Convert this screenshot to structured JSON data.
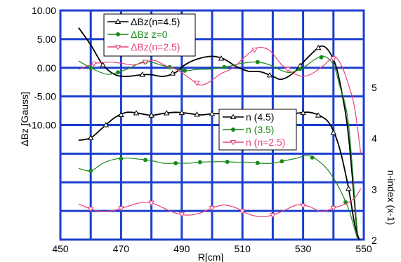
{
  "chart_data": {
    "type": "line",
    "xlabel": "R[cm]",
    "ylabel_left": "ΔBz [Gauss]",
    "ylabel_right": "n-index (x-1)",
    "xlim": [
      450,
      550
    ],
    "x_ticks": [
      "450",
      "470",
      "490",
      "510",
      "530",
      "550"
    ],
    "ylim_left": [
      -30,
      10
    ],
    "y_ticks_left": [
      {
        "value": 10,
        "label": "10.00"
      },
      {
        "value": 5,
        "label": "5.00"
      },
      {
        "value": 0,
        "label": "0.00"
      },
      {
        "value": -5,
        "label": "-5.00"
      },
      {
        "value": -10,
        "label": "-10.00"
      }
    ],
    "ylim_right": [
      2,
      6.5
    ],
    "y_ticks_right": [
      {
        "value": 2,
        "label": "2"
      },
      {
        "value": 3,
        "label": "3"
      },
      {
        "value": 4,
        "label": "4"
      },
      {
        "value": 5,
        "label": "5"
      }
    ],
    "grid": true,
    "colors": {
      "black": "#000000",
      "green": "#1a8a1a",
      "pink": "#e8407a",
      "grid": "#1c3fcf"
    },
    "legend_top": [
      {
        "label": "ΔBz(n=4.5)",
        "color": "#000000",
        "marker": "triangle-up"
      },
      {
        "label": "ΔBz z=0",
        "color": "#1a8a1a",
        "marker": "circle"
      },
      {
        "label": "ΔBz(n=2.5)",
        "color": "#e8407a",
        "marker": "triangle-down"
      }
    ],
    "legend_bottom": [
      {
        "label": "n (4.5)",
        "color": "#000000",
        "marker": "triangle-up"
      },
      {
        "label": "n (3.5)",
        "color": "#1a8a1a",
        "marker": "circle"
      },
      {
        "label": "n (n=2.5)",
        "color": "#e8407a",
        "marker": "triangle-down"
      }
    ],
    "series": [
      {
        "axis": "left",
        "color": "#000000",
        "marker": "triangle-up",
        "points": [
          [
            456,
            7
          ],
          [
            460,
            4
          ],
          [
            464,
            0.5
          ],
          [
            468,
            -1.2
          ],
          [
            472,
            -1.5
          ],
          [
            477,
            -1.2
          ],
          [
            480,
            -1.2
          ],
          [
            484,
            -1.5
          ],
          [
            488,
            -0.8
          ],
          [
            491,
            0.5
          ],
          [
            495,
            1.5
          ],
          [
            500,
            2
          ],
          [
            504,
            1.5
          ],
          [
            508,
            0.2
          ],
          [
            512,
            -0.6
          ],
          [
            516,
            -0.7
          ],
          [
            520,
            -1.5
          ],
          [
            523,
            -2
          ],
          [
            527,
            -0.8
          ],
          [
            531,
            1.5
          ],
          [
            535,
            3.5
          ],
          [
            537,
            3.7
          ],
          [
            539,
            2.5
          ],
          [
            541,
            0
          ],
          [
            543,
            -5
          ],
          [
            545,
            -12
          ],
          [
            548,
            -30
          ]
        ],
        "marked_x": [
          464,
          477,
          487,
          503,
          519,
          529,
          535
        ]
      },
      {
        "axis": "left",
        "color": "#1a8a1a",
        "marker": "circle",
        "points": [
          [
            456,
            1.2
          ],
          [
            460,
            0
          ],
          [
            465,
            -1.1
          ],
          [
            469,
            -0.8
          ],
          [
            473,
            0
          ],
          [
            477,
            1
          ],
          [
            480,
            1
          ],
          [
            483,
            0.5
          ],
          [
            487,
            0
          ],
          [
            491,
            -0.5
          ],
          [
            495,
            -0.3
          ],
          [
            500,
            -0.2
          ],
          [
            505,
            0.2
          ],
          [
            510,
            0.8
          ],
          [
            515,
            1
          ],
          [
            519,
            0.5
          ],
          [
            523,
            -0.5
          ],
          [
            526,
            -0.8
          ],
          [
            530,
            0
          ],
          [
            534,
            1.5
          ],
          [
            537,
            2
          ],
          [
            540,
            0.5
          ],
          [
            542,
            -3
          ],
          [
            545,
            -10
          ],
          [
            548,
            -30
          ]
        ],
        "marked_x": [
          460,
          469,
          478,
          486,
          491,
          504,
          515,
          529,
          536
        ]
      },
      {
        "axis": "left",
        "color": "#e8407a",
        "marker": "triangle-down",
        "points": [
          [
            456,
            -0.3
          ],
          [
            461,
            0.7
          ],
          [
            466,
            1
          ],
          [
            470,
            0.8
          ],
          [
            474,
            0.5
          ],
          [
            478,
            1
          ],
          [
            481,
            1.3
          ],
          [
            485,
            0.3
          ],
          [
            489,
            -0.5
          ],
          [
            493,
            -2
          ],
          [
            496,
            -3
          ],
          [
            499,
            -2.5
          ],
          [
            503,
            -1
          ],
          [
            507,
            0
          ],
          [
            511,
            2
          ],
          [
            515,
            3.5
          ],
          [
            519,
            3
          ],
          [
            523,
            0.5
          ],
          [
            527,
            -1
          ],
          [
            530,
            -1.5
          ],
          [
            533,
            -1
          ],
          [
            537,
            0.5
          ],
          [
            539,
            1.5
          ],
          [
            541,
            1.7
          ],
          [
            543,
            0
          ],
          [
            545,
            -3
          ],
          [
            547,
            -7
          ],
          [
            549,
            -15
          ]
        ],
        "marked_x": [
          461,
          478,
          495,
          514,
          525,
          540
        ]
      },
      {
        "axis": "right",
        "color": "#000000",
        "marker": "triangle-up",
        "points": [
          [
            456,
            3.95
          ],
          [
            460,
            4.0
          ],
          [
            464,
            4.2
          ],
          [
            468,
            4.4
          ],
          [
            472,
            4.5
          ],
          [
            476,
            4.48
          ],
          [
            480,
            4.44
          ],
          [
            484,
            4.48
          ],
          [
            488,
            4.5
          ],
          [
            492,
            4.48
          ],
          [
            496,
            4.45
          ],
          [
            500,
            4.47
          ],
          [
            504,
            4.47
          ],
          [
            508,
            4.42
          ],
          [
            512,
            4.38
          ],
          [
            516,
            4.37
          ],
          [
            520,
            4.4
          ],
          [
            524,
            4.42
          ],
          [
            528,
            4.48
          ],
          [
            532,
            4.5
          ],
          [
            536,
            4.42
          ],
          [
            539,
            4.25
          ],
          [
            542,
            3.8
          ],
          [
            545,
            3.0
          ],
          [
            547,
            2.3
          ],
          [
            548.5,
            2.0
          ]
        ],
        "marked_x": [
          460,
          465,
          470,
          475,
          480,
          485,
          490,
          495,
          500,
          505,
          510,
          515,
          520,
          525,
          530,
          535,
          540,
          545
        ]
      },
      {
        "axis": "right",
        "color": "#1a8a1a",
        "marker": "circle",
        "points": [
          [
            456,
            3.4
          ],
          [
            460,
            3.35
          ],
          [
            464,
            3.5
          ],
          [
            468,
            3.58
          ],
          [
            472,
            3.6
          ],
          [
            476,
            3.58
          ],
          [
            480,
            3.55
          ],
          [
            484,
            3.5
          ],
          [
            488,
            3.5
          ],
          [
            492,
            3.5
          ],
          [
            496,
            3.52
          ],
          [
            500,
            3.53
          ],
          [
            504,
            3.53
          ],
          [
            508,
            3.52
          ],
          [
            512,
            3.52
          ],
          [
            516,
            3.5
          ],
          [
            520,
            3.5
          ],
          [
            524,
            3.55
          ],
          [
            528,
            3.6
          ],
          [
            532,
            3.65
          ],
          [
            536,
            3.5
          ],
          [
            539,
            3.3
          ],
          [
            542,
            3.0
          ],
          [
            545,
            2.6
          ],
          [
            547,
            2.2
          ],
          [
            548,
            2.0
          ]
        ],
        "marked_x": [
          460,
          470,
          478,
          488,
          496,
          505,
          515,
          523,
          533,
          544
        ]
      },
      {
        "axis": "right",
        "color": "#e8407a",
        "marker": "triangle-down",
        "points": [
          [
            456,
            2.7
          ],
          [
            460,
            2.6
          ],
          [
            464,
            2.55
          ],
          [
            468,
            2.58
          ],
          [
            472,
            2.65
          ],
          [
            476,
            2.72
          ],
          [
            480,
            2.72
          ],
          [
            484,
            2.62
          ],
          [
            488,
            2.52
          ],
          [
            492,
            2.48
          ],
          [
            496,
            2.52
          ],
          [
            500,
            2.62
          ],
          [
            504,
            2.68
          ],
          [
            508,
            2.62
          ],
          [
            512,
            2.5
          ],
          [
            516,
            2.45
          ],
          [
            520,
            2.48
          ],
          [
            524,
            2.58
          ],
          [
            528,
            2.68
          ],
          [
            532,
            2.65
          ],
          [
            536,
            2.55
          ],
          [
            540,
            2.62
          ],
          [
            544,
            2.7
          ],
          [
            547,
            2.82
          ],
          [
            549,
            3.0
          ]
        ],
        "marked_x": [
          460,
          470,
          480,
          490,
          500,
          510,
          520,
          530,
          540
        ]
      }
    ]
  }
}
